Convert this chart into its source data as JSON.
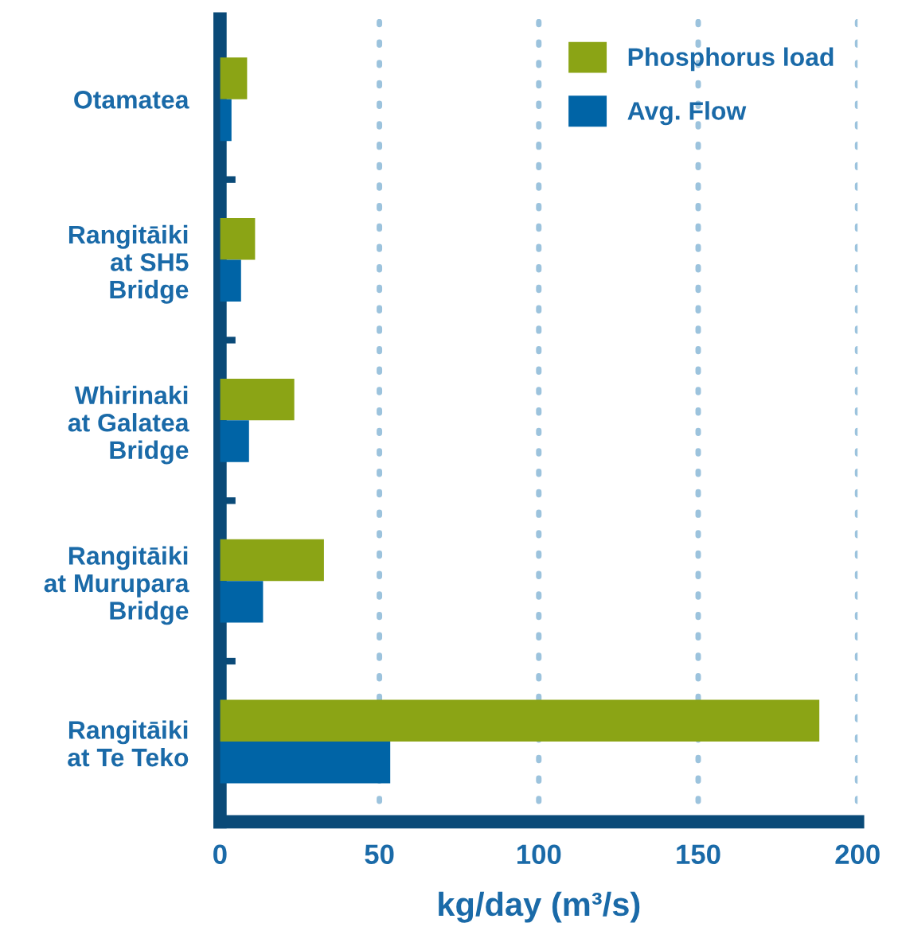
{
  "chart_data": {
    "type": "bar",
    "orientation": "horizontal",
    "categories": [
      "Otamatea",
      "Rangitāiki\nat SH5\nBridge",
      "Whirinaki\nat Galatea\nBridge",
      "Rangitāiki\nat Murupara\nBridge",
      "Rangitāiki\nat Te Teko"
    ],
    "series": [
      {
        "name": "Phosphorus load",
        "color": "#8ba415",
        "values": [
          8.5,
          11,
          23.3,
          32.6,
          188
        ]
      },
      {
        "name": "Avg. Flow",
        "color": "#0064a6",
        "values": [
          3.6,
          6.6,
          9.1,
          13.5,
          53.4
        ]
      }
    ],
    "xlabel": "kg/day (m³/s)",
    "xlim": [
      0,
      200
    ],
    "xticks": [
      0,
      50,
      100,
      150,
      200
    ],
    "grid": "x",
    "legend": "top right"
  }
}
